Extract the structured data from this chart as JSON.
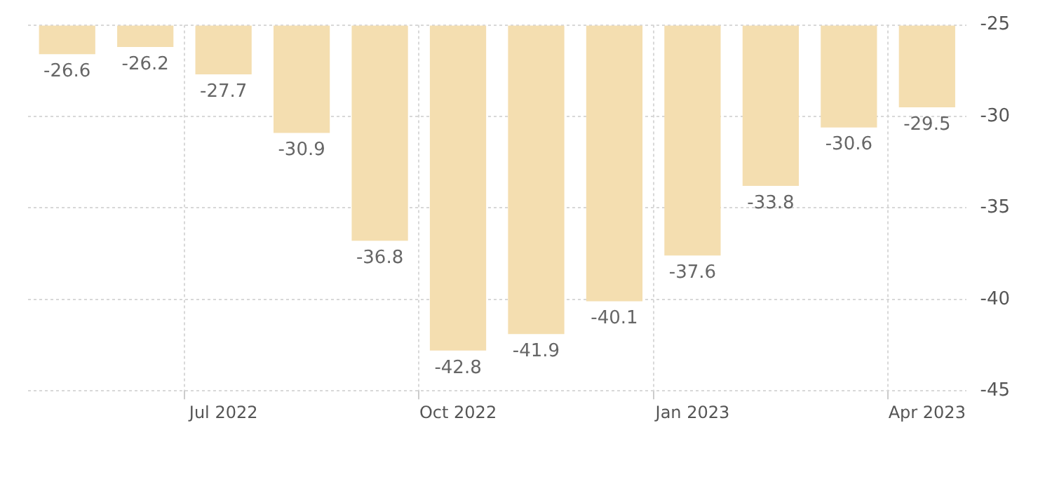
{
  "chart_data": {
    "type": "bar",
    "categories": [
      null,
      null,
      "Jul 2022",
      null,
      null,
      "Oct 2022",
      null,
      null,
      "Jan 2023",
      null,
      null,
      "Apr 2023"
    ],
    "values": [
      -26.6,
      -26.2,
      -27.7,
      -30.9,
      -36.8,
      -42.8,
      -41.9,
      -40.1,
      -37.6,
      -33.8,
      -30.6,
      -29.5
    ],
    "color": "#f4deb0",
    "ylim": [
      -45,
      -25
    ],
    "yticks": [
      -45,
      -40,
      -35,
      -30,
      -25
    ],
    "grid": true,
    "data_labels": true
  }
}
